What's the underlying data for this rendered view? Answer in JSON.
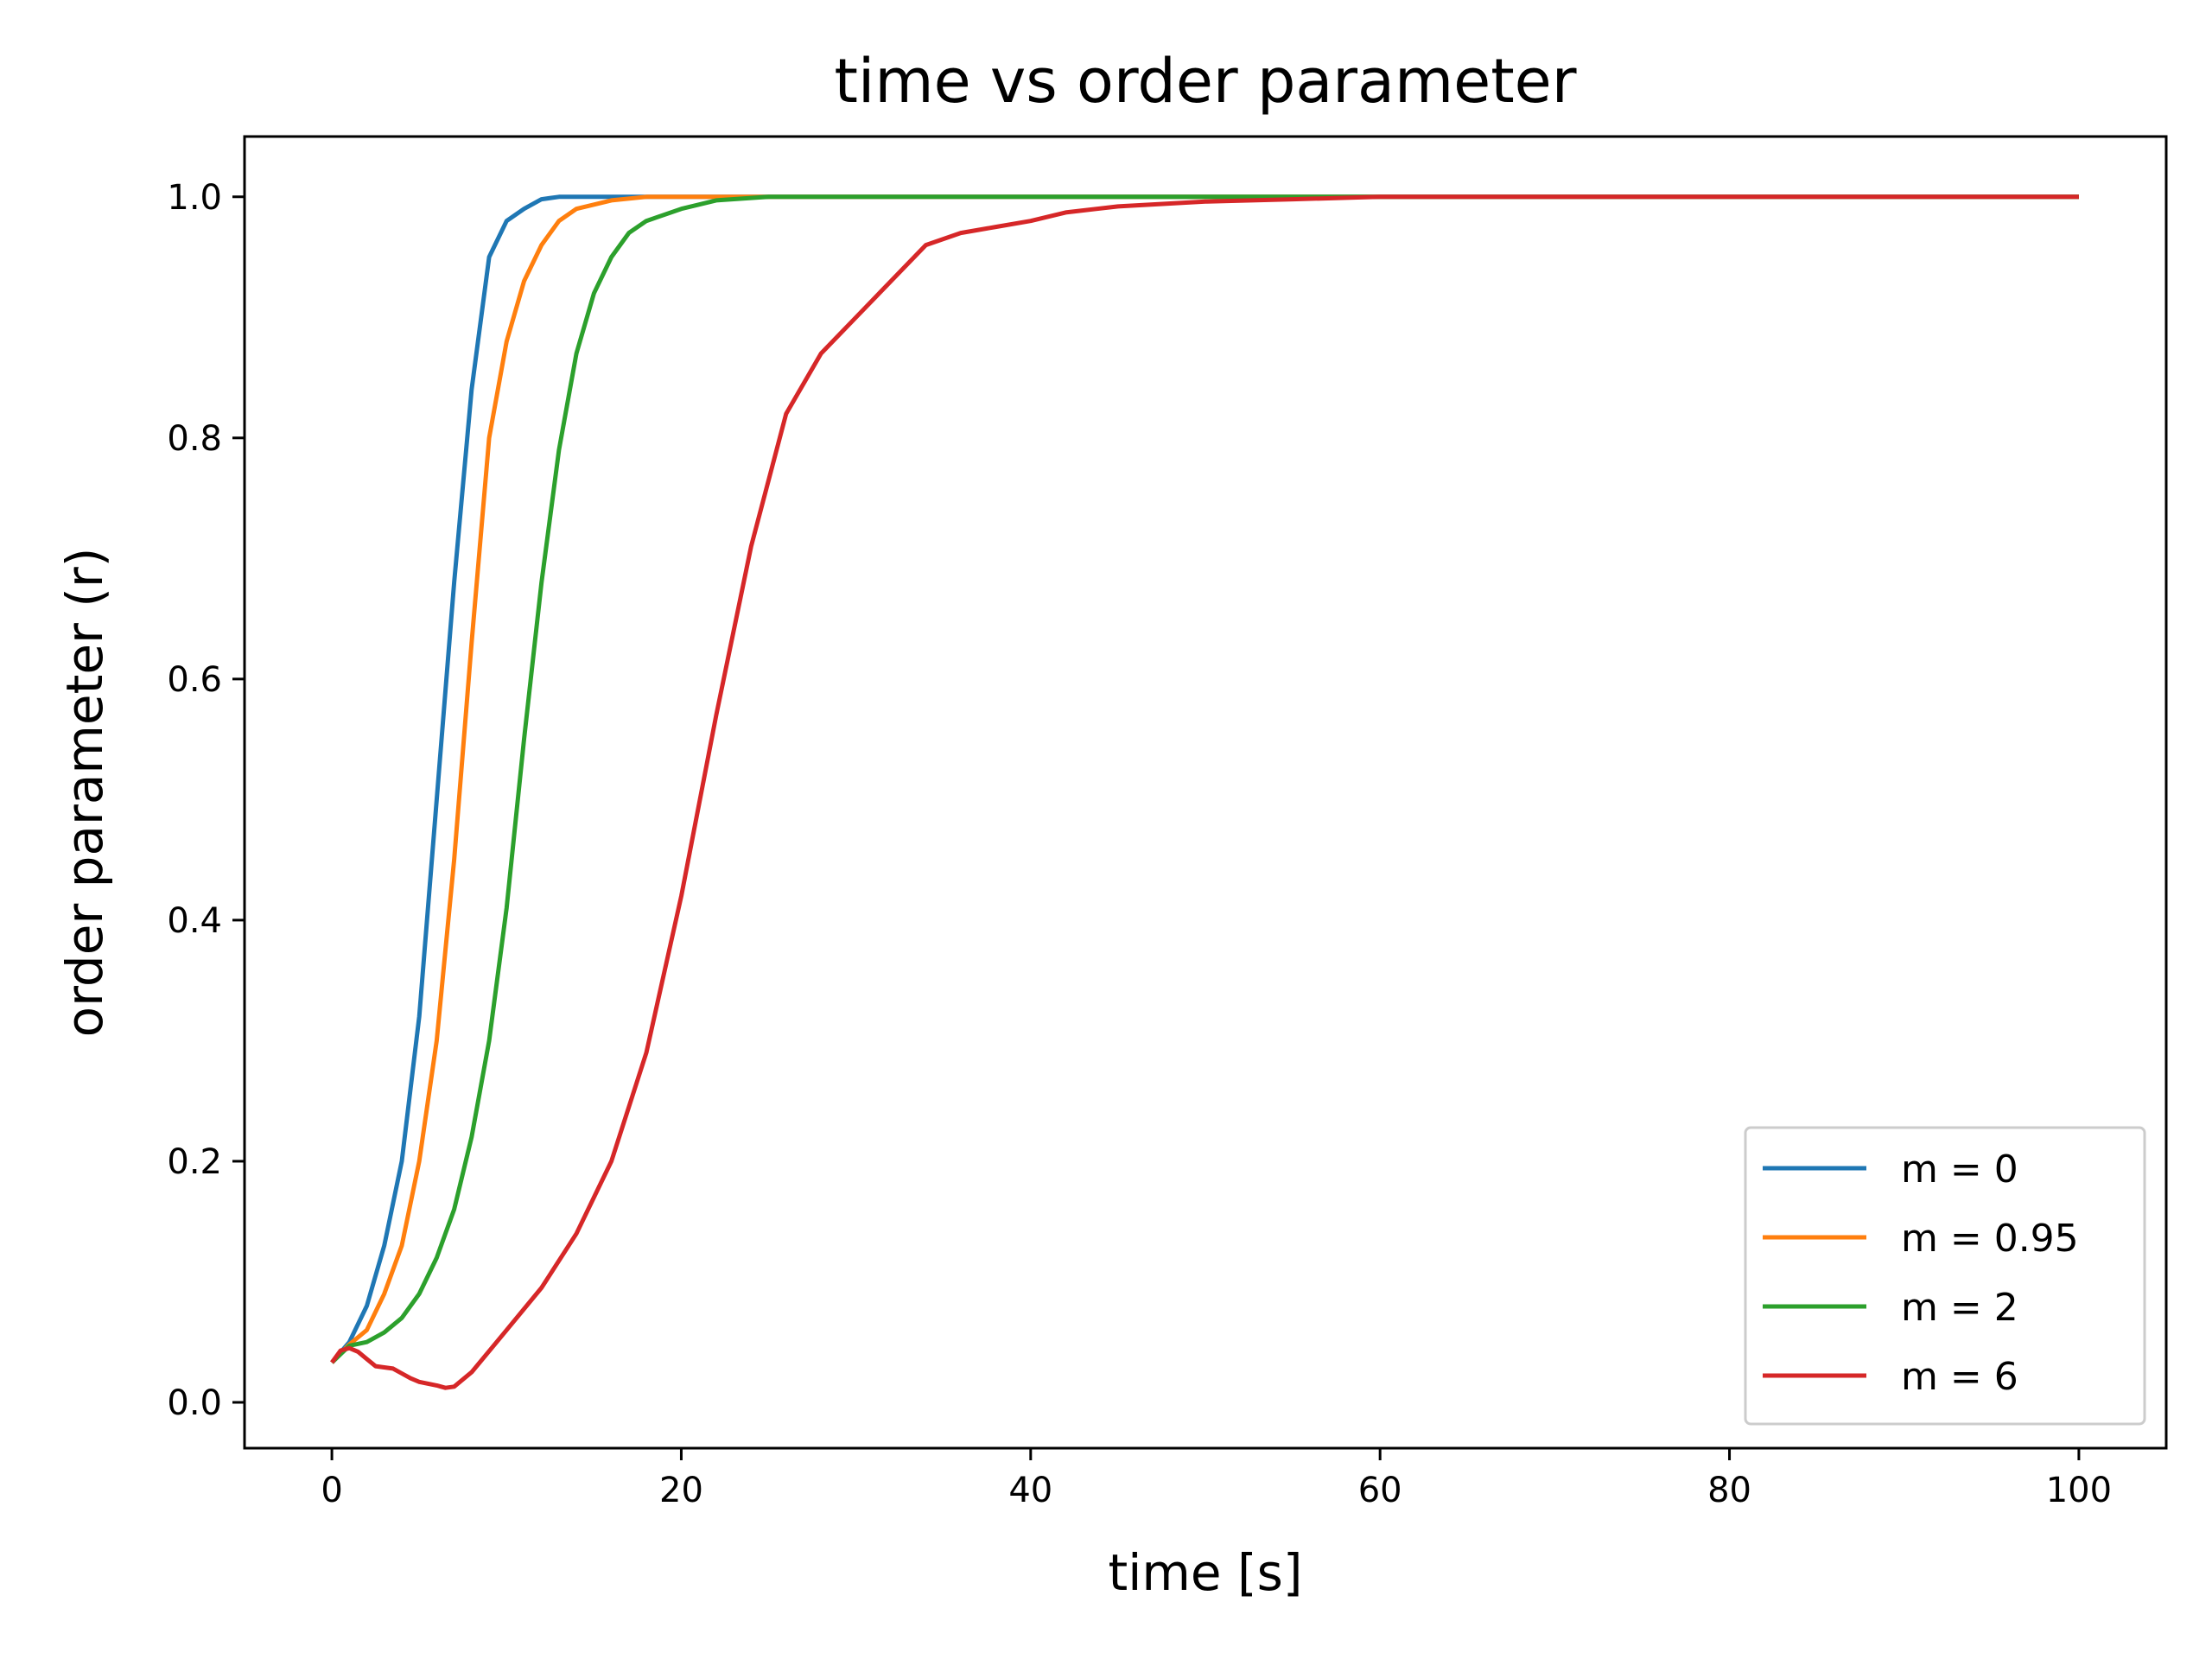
{
  "chart_data": {
    "type": "line",
    "title": "time vs order parameter",
    "xlabel": "time [s]",
    "ylabel": "order parameter (r)",
    "xlim": [
      -5,
      105
    ],
    "ylim": [
      -0.038,
      1.05
    ],
    "xticks": [
      0,
      20,
      40,
      60,
      80,
      100
    ],
    "xtick_labels": [
      "0",
      "20",
      "40",
      "60",
      "80",
      "100"
    ],
    "yticks": [
      0.0,
      0.2,
      0.4,
      0.6,
      0.8,
      1.0
    ],
    "ytick_labels": [
      "0.0",
      "0.2",
      "0.4",
      "0.6",
      "0.8",
      "1.0"
    ],
    "grid": false,
    "legend_position": "lower-right",
    "series": [
      {
        "name": "m = 0",
        "color": "#1f77b4",
        "points": [
          [
            0,
            0.033
          ],
          [
            1,
            0.05
          ],
          [
            2,
            0.08
          ],
          [
            3,
            0.13
          ],
          [
            4,
            0.2
          ],
          [
            5,
            0.32
          ],
          [
            6,
            0.5
          ],
          [
            7,
            0.68
          ],
          [
            8,
            0.84
          ],
          [
            9,
            0.95
          ],
          [
            10,
            0.98
          ],
          [
            11,
            0.99
          ],
          [
            12,
            0.998
          ],
          [
            13,
            1.0
          ],
          [
            20,
            1.0
          ],
          [
            100,
            1.0
          ]
        ]
      },
      {
        "name": "m = 0.95",
        "color": "#ff7f0e",
        "points": [
          [
            0,
            0.033
          ],
          [
            1,
            0.048
          ],
          [
            2,
            0.06
          ],
          [
            3,
            0.09
          ],
          [
            4,
            0.13
          ],
          [
            5,
            0.2
          ],
          [
            6,
            0.3
          ],
          [
            7,
            0.45
          ],
          [
            8,
            0.63
          ],
          [
            9,
            0.8
          ],
          [
            10,
            0.88
          ],
          [
            11,
            0.93
          ],
          [
            12,
            0.96
          ],
          [
            13,
            0.98
          ],
          [
            14,
            0.99
          ],
          [
            16,
            0.997
          ],
          [
            18,
            1.0
          ],
          [
            25,
            1.0
          ],
          [
            100,
            1.0
          ]
        ]
      },
      {
        "name": "m = 2",
        "color": "#2ca02c",
        "points": [
          [
            0,
            0.033
          ],
          [
            1,
            0.047
          ],
          [
            2,
            0.05
          ],
          [
            3,
            0.058
          ],
          [
            4,
            0.07
          ],
          [
            5,
            0.09
          ],
          [
            6,
            0.12
          ],
          [
            7,
            0.16
          ],
          [
            8,
            0.22
          ],
          [
            9,
            0.3
          ],
          [
            10,
            0.41
          ],
          [
            11,
            0.55
          ],
          [
            12,
            0.68
          ],
          [
            13,
            0.79
          ],
          [
            14,
            0.87
          ],
          [
            15,
            0.92
          ],
          [
            16,
            0.95
          ],
          [
            17,
            0.97
          ],
          [
            18,
            0.98
          ],
          [
            20,
            0.99
          ],
          [
            22,
            0.997
          ],
          [
            25,
            1.0
          ],
          [
            30,
            1.0
          ],
          [
            100,
            1.0
          ]
        ]
      },
      {
        "name": "m = 6",
        "color": "#d62728",
        "points": [
          [
            0,
            0.033
          ],
          [
            0.5,
            0.043
          ],
          [
            1,
            0.045
          ],
          [
            1.5,
            0.042
          ],
          [
            2,
            0.036
          ],
          [
            2.5,
            0.03
          ],
          [
            3,
            0.029
          ],
          [
            3.5,
            0.028
          ],
          [
            4,
            0.024
          ],
          [
            4.5,
            0.02
          ],
          [
            5,
            0.017
          ],
          [
            6,
            0.014
          ],
          [
            6.5,
            0.012
          ],
          [
            7,
            0.013
          ],
          [
            8,
            0.025
          ],
          [
            10,
            0.06
          ],
          [
            12,
            0.095
          ],
          [
            14,
            0.14
          ],
          [
            16,
            0.2
          ],
          [
            18,
            0.29
          ],
          [
            20,
            0.42
          ],
          [
            22,
            0.57
          ],
          [
            24,
            0.71
          ],
          [
            26,
            0.82
          ],
          [
            28,
            0.87
          ],
          [
            30,
            0.9
          ],
          [
            32,
            0.93
          ],
          [
            34,
            0.96
          ],
          [
            36,
            0.97
          ],
          [
            38,
            0.975
          ],
          [
            40,
            0.98
          ],
          [
            42,
            0.987
          ],
          [
            45,
            0.992
          ],
          [
            50,
            0.996
          ],
          [
            55,
            0.998
          ],
          [
            60,
            1.0
          ],
          [
            100,
            1.0
          ]
        ]
      }
    ]
  }
}
